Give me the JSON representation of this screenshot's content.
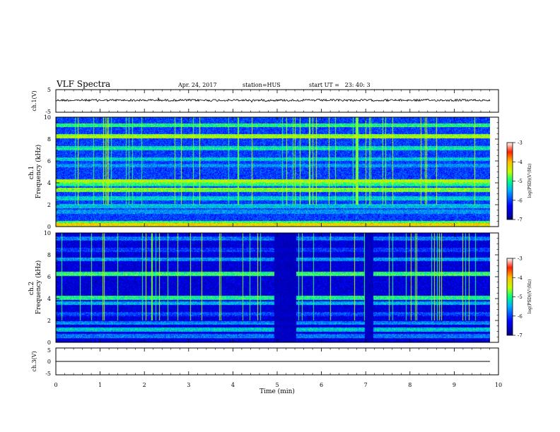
{
  "header": {
    "title": "VLF Spectra",
    "date": "Apr. 24, 2017",
    "station": "station=HUS",
    "start_ut": "start UT =   23: 40: 3"
  },
  "chart_data": [
    {
      "type": "line",
      "panel": "ch1-voltage",
      "ylabel": "ch.1(V)",
      "ylim": [
        -5,
        5
      ],
      "yticks": [
        "5",
        "-5"
      ],
      "description_values": {
        "baseline_v": 0,
        "noise_amplitude_v": 0.4
      },
      "xlim": [
        0,
        10
      ]
    },
    {
      "type": "heatmap",
      "panel": "ch1-spectrogram",
      "ylabel": "ch.1\nFrequency (kHz)",
      "ylabel_lines": [
        "ch.1",
        "Frequency (kHz)"
      ],
      "ylim": [
        0,
        10
      ],
      "yticks": [
        "0",
        "2",
        "4",
        "6",
        "8",
        "10"
      ],
      "xlim": [
        0,
        9.85
      ],
      "colorbar": {
        "label": "log(PSD)(V²/Hz)",
        "range": [
          -7,
          -3
        ],
        "ticks": [
          "-3",
          "-4",
          "-5",
          "-6",
          "-7"
        ]
      },
      "bands_khz": [
        {
          "f": 9.3,
          "level": -5.0
        },
        {
          "f": 8.3,
          "level": -4.6
        },
        {
          "f": 7.2,
          "level": -5.2
        },
        {
          "f": 6.2,
          "level": -5.3
        },
        {
          "f": 5.6,
          "level": -5.6
        },
        {
          "f": 4.2,
          "level": -4.5
        },
        {
          "f": 3.9,
          "level": -5.0
        },
        {
          "f": 3.4,
          "level": -4.7
        },
        {
          "f": 2.6,
          "level": -5.3
        },
        {
          "f": 1.9,
          "level": -5.4
        },
        {
          "f": 1.4,
          "level": -5.6
        },
        {
          "f": 0.4,
          "level": -4.8
        },
        {
          "f": 0.15,
          "level": -4.2
        }
      ]
    },
    {
      "type": "heatmap",
      "panel": "ch2-spectrogram",
      "ylabel": "ch.2\nFrequency (kHz)",
      "ylabel_lines": [
        "ch.2",
        "Frequency (kHz)"
      ],
      "ylim": [
        0,
        10
      ],
      "yticks": [
        "0",
        "2",
        "4",
        "6",
        "8",
        "10"
      ],
      "xlim": [
        0,
        9.85
      ],
      "colorbar": {
        "label": "log(PSD)(V²/Hz)",
        "range": [
          -7,
          -3
        ],
        "ticks": [
          "-3",
          "-4",
          "-5",
          "-6",
          "-7"
        ]
      },
      "bands_khz": [
        {
          "f": 9.5,
          "level": -5.8
        },
        {
          "f": 8.5,
          "level": -6.1
        },
        {
          "f": 7.6,
          "level": -5.6
        },
        {
          "f": 6.3,
          "level": -5.0
        },
        {
          "f": 4.1,
          "level": -5.1
        },
        {
          "f": 3.6,
          "level": -5.5
        },
        {
          "f": 2.6,
          "level": -6.0
        },
        {
          "f": 1.8,
          "level": -5.6
        },
        {
          "f": 1.2,
          "level": -5.4
        },
        {
          "f": 0.6,
          "level": -5.7
        }
      ],
      "quiet_intervals_min": [
        [
          4.95,
          5.45
        ],
        [
          7.0,
          7.2
        ]
      ]
    },
    {
      "type": "line",
      "panel": "ch3-voltage",
      "ylabel": "ch.3(V)",
      "ylim": [
        -5,
        5
      ],
      "yticks": [
        "5",
        "0",
        "-5"
      ],
      "description_values": {
        "baseline_v": 0,
        "noise_amplitude_v": 0
      },
      "xlim": [
        0,
        10
      ],
      "xlabel": "Time (min)",
      "xticks": [
        "0",
        "1",
        "2",
        "3",
        "4",
        "5",
        "6",
        "7",
        "8",
        "9",
        "10"
      ]
    }
  ]
}
